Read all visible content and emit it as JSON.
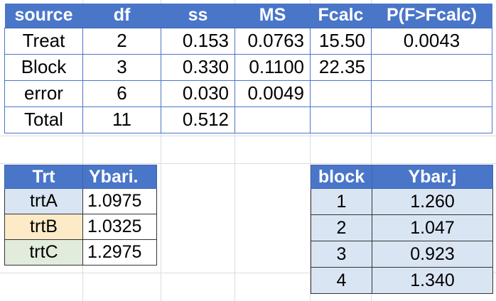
{
  "anova": {
    "headers": [
      "source",
      "df",
      "ss",
      "MS",
      "Fcalc",
      "P(F>Fcalc)"
    ],
    "rows": [
      [
        "Treat",
        "2",
        "0.153",
        "0.0763",
        "15.50",
        "0.0043"
      ],
      [
        "Block",
        "3",
        "0.330",
        "0.1100",
        "22.35",
        ""
      ],
      [
        "error",
        "6",
        "0.030",
        "0.0049",
        "",
        ""
      ],
      [
        "Total",
        "11",
        "0.512",
        "",
        "",
        ""
      ]
    ]
  },
  "treatments": {
    "headers": [
      "Trt",
      "Ybari."
    ],
    "rows": [
      {
        "name": "trtA",
        "value": "1.0975",
        "color": "#dae5f3"
      },
      {
        "name": "trtB",
        "value": "1.0325",
        "color": "#fdebc8"
      },
      {
        "name": "trtC",
        "value": "1.2975",
        "color": "#e2ecdc"
      }
    ]
  },
  "blocks": {
    "headers": [
      "block",
      "Ybar.j"
    ],
    "rows": [
      [
        "1",
        "1.260"
      ],
      [
        "2",
        "1.047"
      ],
      [
        "3",
        "0.923"
      ],
      [
        "4",
        "1.340"
      ]
    ]
  },
  "colors": {
    "header_bg": "#4a76c9",
    "cell_light_blue": "#dae5f3"
  }
}
